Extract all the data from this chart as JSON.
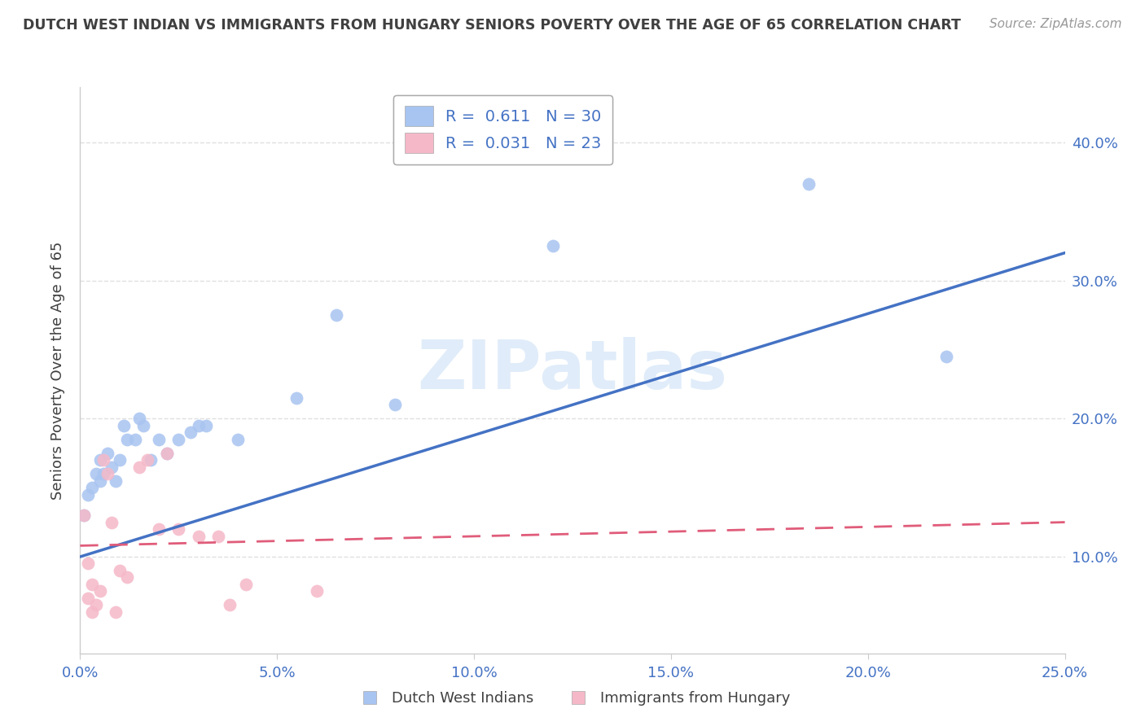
{
  "title": "DUTCH WEST INDIAN VS IMMIGRANTS FROM HUNGARY SENIORS POVERTY OVER THE AGE OF 65 CORRELATION CHART",
  "source": "Source: ZipAtlas.com",
  "ylabel": "Seniors Poverty Over the Age of 65",
  "xlim": [
    0.0,
    0.25
  ],
  "ylim": [
    0.03,
    0.44
  ],
  "yticks": [
    0.1,
    0.2,
    0.3,
    0.4
  ],
  "xticks": [
    0.0,
    0.05,
    0.1,
    0.15,
    0.2,
    0.25
  ],
  "blue_R": 0.611,
  "blue_N": 30,
  "pink_R": 0.031,
  "pink_N": 23,
  "blue_color": "#a8c4f0",
  "pink_color": "#f5b8c8",
  "blue_line_color": "#4472C4",
  "pink_line_color": "#E05C7A",
  "title_color": "#404040",
  "axis_tick_color": "#4472C4",
  "watermark": "ZIPatlas",
  "blue_scatter_x": [
    0.001,
    0.002,
    0.003,
    0.004,
    0.005,
    0.005,
    0.006,
    0.007,
    0.008,
    0.009,
    0.01,
    0.011,
    0.012,
    0.014,
    0.015,
    0.016,
    0.018,
    0.02,
    0.022,
    0.025,
    0.028,
    0.03,
    0.032,
    0.04,
    0.055,
    0.065,
    0.08,
    0.12,
    0.185,
    0.22
  ],
  "blue_scatter_y": [
    0.13,
    0.145,
    0.15,
    0.16,
    0.155,
    0.17,
    0.16,
    0.175,
    0.165,
    0.155,
    0.17,
    0.195,
    0.185,
    0.185,
    0.2,
    0.195,
    0.17,
    0.185,
    0.175,
    0.185,
    0.19,
    0.195,
    0.195,
    0.185,
    0.215,
    0.275,
    0.21,
    0.325,
    0.37,
    0.245
  ],
  "pink_scatter_x": [
    0.001,
    0.002,
    0.002,
    0.003,
    0.003,
    0.004,
    0.005,
    0.006,
    0.007,
    0.008,
    0.009,
    0.01,
    0.012,
    0.015,
    0.017,
    0.02,
    0.022,
    0.025,
    0.03,
    0.035,
    0.038,
    0.042,
    0.06
  ],
  "pink_scatter_y": [
    0.13,
    0.095,
    0.07,
    0.08,
    0.06,
    0.065,
    0.075,
    0.17,
    0.16,
    0.125,
    0.06,
    0.09,
    0.085,
    0.165,
    0.17,
    0.12,
    0.175,
    0.12,
    0.115,
    0.115,
    0.065,
    0.08,
    0.075
  ],
  "blue_line_x": [
    0.0,
    0.25
  ],
  "blue_line_y": [
    0.1,
    0.32
  ],
  "pink_line_x": [
    0.0,
    0.25
  ],
  "pink_line_y": [
    0.108,
    0.125
  ],
  "grid_color": "#e0e0e0",
  "legend_blue_label": "Dutch West Indians",
  "legend_pink_label": "Immigrants from Hungary",
  "bg_color": "#ffffff"
}
